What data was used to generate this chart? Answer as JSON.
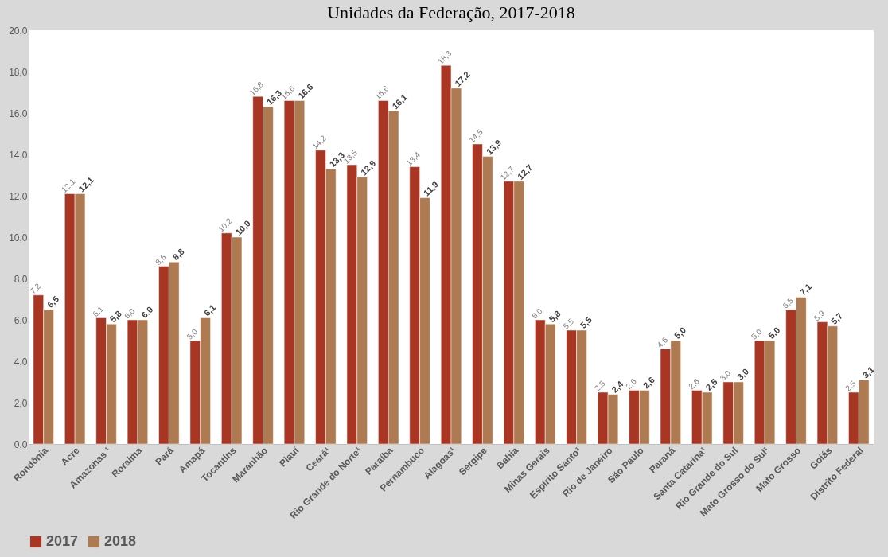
{
  "chart_data": {
    "type": "bar",
    "title": "Unidades da Federação, 2017-2018",
    "categories": [
      "Rondônia",
      "Acre",
      "Amazonas ¹",
      "Roraima",
      "Pará",
      "Amapá",
      "Tocantins",
      "Maranhão",
      "Piauí",
      "Ceará¹",
      "Rio Grande do Norte¹",
      "Paraíba",
      "Pernambuco",
      "Alagoas¹",
      "Sergipe",
      "Bahia",
      "Minas Gerais",
      "Espírito Santo¹",
      "Rio de Janeiro",
      "São Paulo",
      "Paraná",
      "Santa Catarina¹",
      "Rio Grande do Sul",
      "Mato Grosso do Sul¹",
      "Mato Grosso",
      "Goiás",
      "Distrito Federal"
    ],
    "series": [
      {
        "name": "2017",
        "color": "#a93523",
        "values": [
          7.2,
          12.1,
          6.1,
          6.0,
          8.6,
          5.0,
          10.2,
          16.8,
          16.6,
          14.2,
          13.5,
          16.6,
          13.4,
          18.3,
          14.5,
          12.7,
          6.0,
          5.5,
          2.5,
          2.6,
          4.6,
          2.6,
          3.0,
          5.0,
          6.5,
          5.9,
          2.5
        ],
        "value_labels": [
          "7,2",
          "12,1",
          "6,1",
          "6,0",
          "8,6",
          "5,0",
          "10,2",
          "16,8",
          "16,6",
          "14,2",
          "13,5",
          "16,6",
          "13,4",
          "18,3",
          "14,5",
          "12,7",
          "6,0",
          "5,5",
          "2,5",
          "2,6",
          "4,6",
          "2,6",
          "3,0",
          "5,0",
          "6,5",
          "5,9",
          "2,5"
        ]
      },
      {
        "name": "2018",
        "color": "#ad7a52",
        "values": [
          6.5,
          12.1,
          5.8,
          6.0,
          8.8,
          6.1,
          10.0,
          16.3,
          16.6,
          13.3,
          12.9,
          16.1,
          11.9,
          17.2,
          13.9,
          12.7,
          5.8,
          5.5,
          2.4,
          2.6,
          5.0,
          2.5,
          3.0,
          5.0,
          7.1,
          5.7,
          3.1
        ],
        "value_labels": [
          "6,5",
          "12,1",
          "5,8",
          "6,0",
          "8,8",
          "6,1",
          "10,0",
          "16,3",
          "16,6",
          "13,3",
          "12,9",
          "16,1",
          "11,9",
          "17,2",
          "13,9",
          "12,7",
          "5,8",
          "5,5",
          "2,4",
          "2,6",
          "5,0",
          "2,5",
          "3,0",
          "5,0",
          "7,1",
          "5,7",
          "3,1"
        ]
      }
    ],
    "ylim": [
      0,
      20
    ],
    "yticks": [
      {
        "value": 0,
        "label": "0,0"
      },
      {
        "value": 2,
        "label": "2,0"
      },
      {
        "value": 4,
        "label": "4,0"
      },
      {
        "value": 6,
        "label": "6,0"
      },
      {
        "value": 8,
        "label": "8,0"
      },
      {
        "value": 10,
        "label": "10,0"
      },
      {
        "value": 12,
        "label": "12,0"
      },
      {
        "value": 14,
        "label": "14,0"
      },
      {
        "value": 16,
        "label": "16,0"
      },
      {
        "value": 18,
        "label": "18,0"
      },
      {
        "value": 20,
        "label": "20,0"
      }
    ],
    "grid": false,
    "legend": "bottom"
  }
}
